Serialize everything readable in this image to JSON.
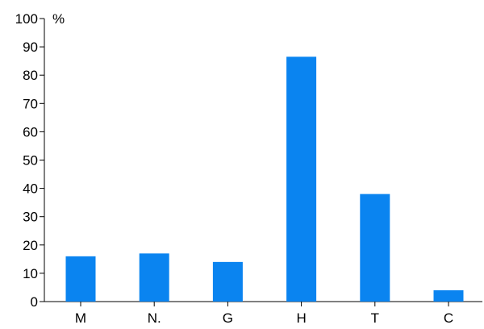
{
  "chart_data": {
    "type": "bar",
    "categories": [
      "M",
      "N.",
      "G",
      "H",
      "T",
      "C"
    ],
    "values": [
      16,
      17,
      14,
      86.5,
      38,
      4
    ],
    "ylabel": "%",
    "ylim": [
      0,
      100
    ],
    "yticks": [
      0,
      10,
      20,
      30,
      40,
      50,
      60,
      70,
      80,
      90,
      100
    ],
    "grid": false,
    "legend": "none",
    "bar_color": "#0A84F0",
    "axis_color": "#000000"
  }
}
